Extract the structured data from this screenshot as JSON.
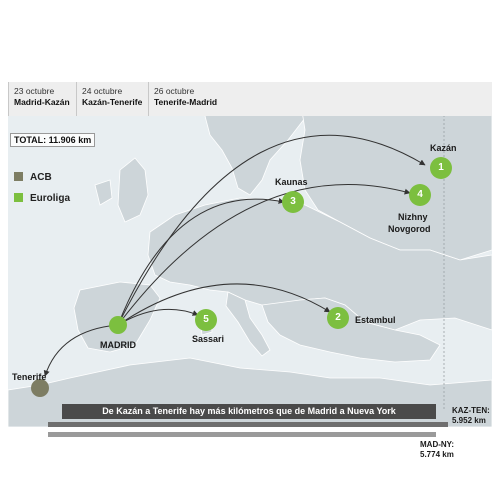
{
  "timeline": [
    {
      "date": "23 octubre",
      "route": "Madrid-Kazán"
    },
    {
      "date": "24 octubre",
      "route": "Kazán-Tenerife"
    },
    {
      "date": "26 octubre",
      "route": "Tenerife-Madrid"
    }
  ],
  "total": "TOTAL: 11.906 km",
  "legend": [
    {
      "label": "ACB",
      "color": "#7d7d63"
    },
    {
      "label": "Euroliga",
      "color": "#7cbf3f"
    }
  ],
  "cities": {
    "kazan": "Kazán",
    "kaunas": "Kaunas",
    "nizhny_1": "Nizhny",
    "nizhny_2": "Novgorod",
    "estambul": "Estambul",
    "sassari": "Sassari",
    "madrid": "MADRID",
    "tenerife": "Tenerife"
  },
  "markers": [
    {
      "id": "kazan",
      "number": "1"
    },
    {
      "id": "estambul",
      "number": "2"
    },
    {
      "id": "kaunas",
      "number": "3"
    },
    {
      "id": "nizhny",
      "number": "4"
    },
    {
      "id": "sassari",
      "number": "5"
    }
  ],
  "banner": "De Kazán a Tenerife hay más kilómetros que de Madrid a Nueva York",
  "bars": {
    "kaz_ten": {
      "label": "KAZ-TEN:",
      "value": "5.952 km",
      "km": 5952
    },
    "mad_ny": {
      "label": "MAD-NY:",
      "value": "5.774 km",
      "km": 5774
    }
  },
  "colors": {
    "euroliga": "#7cbf3f",
    "acb": "#7d7d63",
    "land": "#cdd5d9",
    "sea": "#e8eef1",
    "route_line": "#333333"
  }
}
